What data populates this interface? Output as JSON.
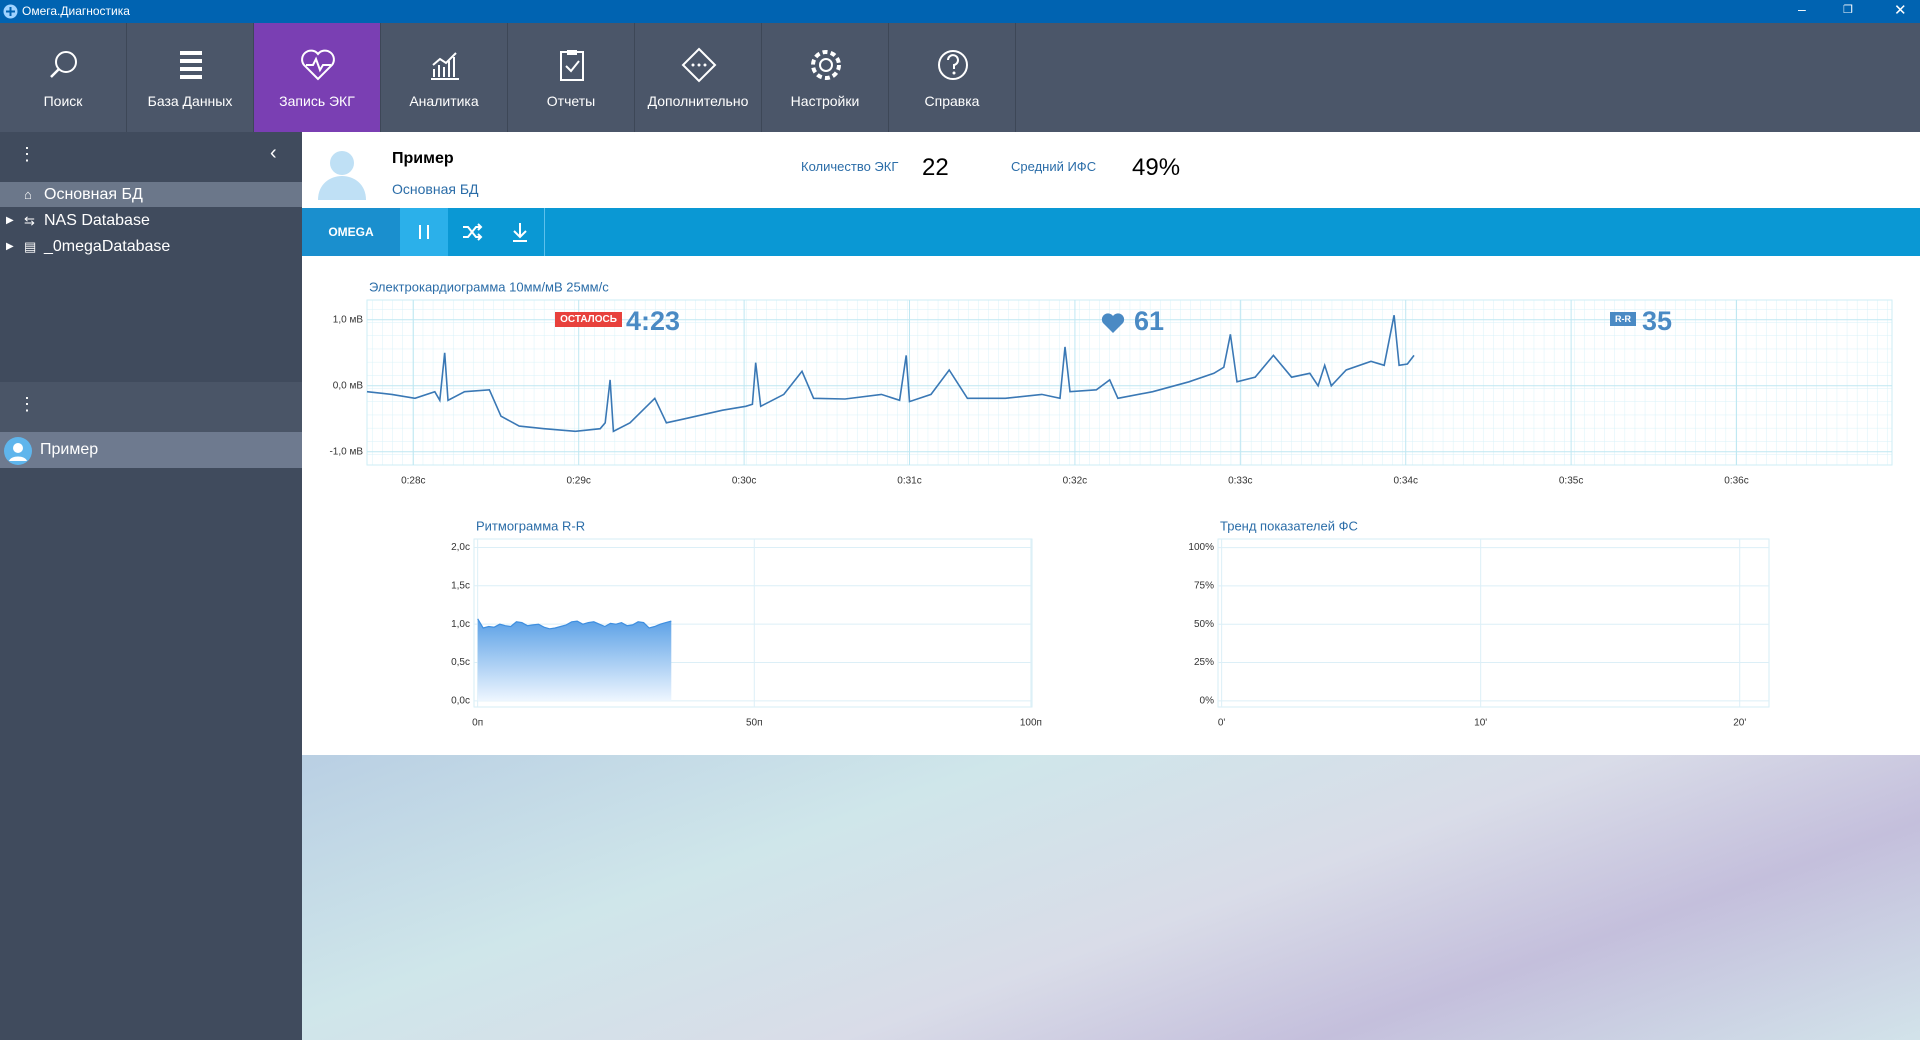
{
  "window": {
    "title": "Омега.Диагностика"
  },
  "toolbar": {
    "items": [
      "Поиск",
      "База Данных",
      "Запись ЭКГ",
      "Аналитика",
      "Отчеты",
      "Дополнительно",
      "Настройки",
      "Справка"
    ],
    "active": 2
  },
  "sidebar": {
    "databases": [
      "Основная БД",
      "NAS Database",
      "_0megaDatabase"
    ],
    "patients": [
      "Пример"
    ]
  },
  "patient": {
    "name": "Пример",
    "database": "Основная БД",
    "ecg_count_label": "Количество ЭКГ",
    "ecg_count": 22,
    "ifs_label": "Средний ИФС",
    "ifs": "49%"
  },
  "device_bar": {
    "device": "OMEGA"
  },
  "monitor": {
    "remaining_label": "ОСТАЛОСЬ",
    "remaining": "4:23",
    "heart_rate": 61,
    "rr_label": "R-R",
    "rr": 35
  },
  "chart_data": [
    {
      "type": "line",
      "title": "Электрокардиограмма 10мм/мВ 25мм/с",
      "color": "#3a78b5",
      "grid": true,
      "xlim": [
        27.72,
        36.94
      ],
      "ylim": [
        -1.2,
        1.3
      ],
      "xticks": [
        {
          "value": 28,
          "label": "0:28с"
        },
        {
          "value": 29,
          "label": "0:29с"
        },
        {
          "value": 30,
          "label": "0:30с"
        },
        {
          "value": 31,
          "label": "0:31с"
        },
        {
          "value": 32,
          "label": "0:32с"
        },
        {
          "value": 33,
          "label": "0:33с"
        },
        {
          "value": 34,
          "label": "0:34с"
        },
        {
          "value": 35,
          "label": "0:35с"
        },
        {
          "value": 36,
          "label": "0:36с"
        }
      ],
      "yticks": [
        {
          "value": 1,
          "label": "1,0 мВ"
        },
        {
          "value": 0,
          "label": "0,0 мВ"
        },
        {
          "value": -1,
          "label": "-1,0 мВ"
        }
      ],
      "x": [
        27.72,
        27.87,
        28.01,
        28.13,
        28.16,
        28.19,
        28.21,
        28.31,
        28.46,
        28.53,
        28.64,
        28.79,
        28.98,
        29.13,
        29.16,
        29.19,
        29.21,
        29.31,
        29.46,
        29.53,
        29.64,
        29.87,
        30.01,
        30.05,
        30.07,
        30.1,
        30.24,
        30.35,
        30.42,
        30.61,
        30.83,
        30.94,
        30.98,
        31.0,
        31.13,
        31.24,
        31.35,
        31.58,
        31.8,
        31.91,
        31.94,
        31.97,
        32.13,
        32.21,
        32.26,
        32.47,
        32.69,
        32.84,
        32.9,
        32.94,
        32.98,
        33.09,
        33.2,
        33.31,
        33.42,
        33.47,
        33.51,
        33.55,
        33.64,
        33.79,
        33.87,
        33.93,
        33.96,
        34.01,
        34.05
      ],
      "values": [
        -0.09,
        -0.13,
        -0.19,
        -0.09,
        -0.22,
        0.5,
        -0.22,
        -0.09,
        -0.06,
        -0.46,
        -0.61,
        -0.65,
        -0.69,
        -0.65,
        -0.56,
        0.09,
        -0.69,
        -0.56,
        -0.19,
        -0.56,
        -0.5,
        -0.37,
        -0.31,
        -0.28,
        0.35,
        -0.31,
        -0.13,
        0.22,
        -0.19,
        -0.2,
        -0.13,
        -0.22,
        0.46,
        -0.24,
        -0.13,
        0.24,
        -0.19,
        -0.19,
        -0.13,
        -0.19,
        0.59,
        -0.09,
        -0.06,
        0.09,
        -0.19,
        -0.09,
        0.06,
        0.19,
        0.28,
        0.78,
        0.06,
        0.13,
        0.46,
        0.13,
        0.19,
        0,
        0.31,
        0,
        0.24,
        0.37,
        0.31,
        1.07,
        0.31,
        0.33,
        0.46
      ]
    },
    {
      "type": "area",
      "title": "Ритмограмма R-R",
      "color": "#3f8fe0",
      "grid": true,
      "xlim": [
        -0.66,
        100.2
      ],
      "ylim": [
        -0.08,
        2.11
      ],
      "xticks": [
        {
          "value": 0,
          "label": "0п"
        },
        {
          "value": 50,
          "label": "50п"
        },
        {
          "value": 100,
          "label": "100п"
        }
      ],
      "yticks": [
        {
          "value": 0,
          "label": "0,0с"
        },
        {
          "value": 0.5,
          "label": "0,5с"
        },
        {
          "value": 1,
          "label": "1,0с"
        },
        {
          "value": 1.5,
          "label": "1,5с"
        },
        {
          "value": 2,
          "label": "2,0с"
        }
      ],
      "x": [
        0,
        1,
        2,
        3,
        4,
        5,
        6,
        7,
        8,
        9,
        10,
        11,
        12,
        13,
        14,
        15,
        16,
        17,
        18,
        19,
        20,
        21,
        22,
        23,
        24,
        25,
        26,
        27,
        28,
        29,
        30,
        31,
        32,
        33,
        34,
        35
      ],
      "values": [
        1.07,
        0.95,
        0.97,
        0.96,
        1.0,
        0.98,
        0.97,
        1.03,
        1.02,
        0.98,
        0.99,
        1.0,
        0.96,
        0.94,
        0.95,
        0.97,
        0.99,
        1.03,
        1.04,
        1.0,
        1.02,
        1.03,
        1.0,
        0.97,
        1.01,
        1.0,
        1.02,
        0.98,
        0.99,
        1.03,
        1.02,
        0.95,
        0.97,
        1.0,
        1.02,
        1.04
      ]
    },
    {
      "type": "line",
      "title": "Тренд показателей ФС",
      "grid": true,
      "xlim": [
        -0.14,
        21.13
      ],
      "ylim": [
        -4,
        105.6
      ],
      "xticks": [
        {
          "value": 0,
          "label": "0'"
        },
        {
          "value": 10,
          "label": "10'"
        },
        {
          "value": 20,
          "label": "20'"
        }
      ],
      "yticks": [
        {
          "value": 0,
          "label": "0%"
        },
        {
          "value": 25,
          "label": "25%"
        },
        {
          "value": 50,
          "label": "50%"
        },
        {
          "value": 75,
          "label": "75%"
        },
        {
          "value": 100,
          "label": "100%"
        }
      ]
    }
  ]
}
